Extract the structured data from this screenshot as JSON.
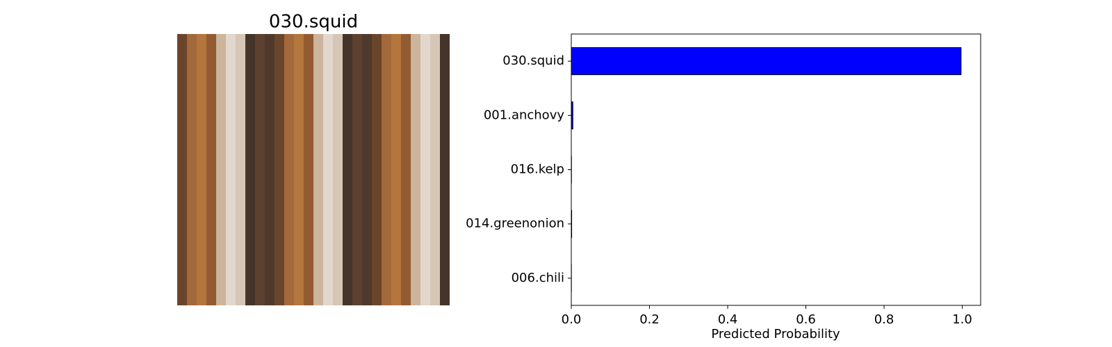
{
  "image": {
    "title": "030.squid"
  },
  "chart_data": {
    "type": "barh",
    "categories": [
      "030.squid",
      "001.anchovy",
      "016.kelp",
      "014.greenonion",
      "006.chili"
    ],
    "values": [
      0.997,
      0.004,
      0.0005,
      0.001,
      0.0003
    ],
    "color": "#0000ff",
    "edgecolor": "#000000",
    "xlim": [
      0,
      1.047
    ],
    "xticks": [
      {
        "value": 0,
        "label": "0.0"
      },
      {
        "value": 0.2,
        "label": "0.2"
      },
      {
        "value": 0.4,
        "label": "0.4"
      },
      {
        "value": 0.6,
        "label": "0.6"
      },
      {
        "value": 0.8,
        "label": "0.8"
      },
      {
        "value": 1,
        "label": "1.0"
      }
    ],
    "xlabel": "Predicted Probability",
    "grid": false
  }
}
